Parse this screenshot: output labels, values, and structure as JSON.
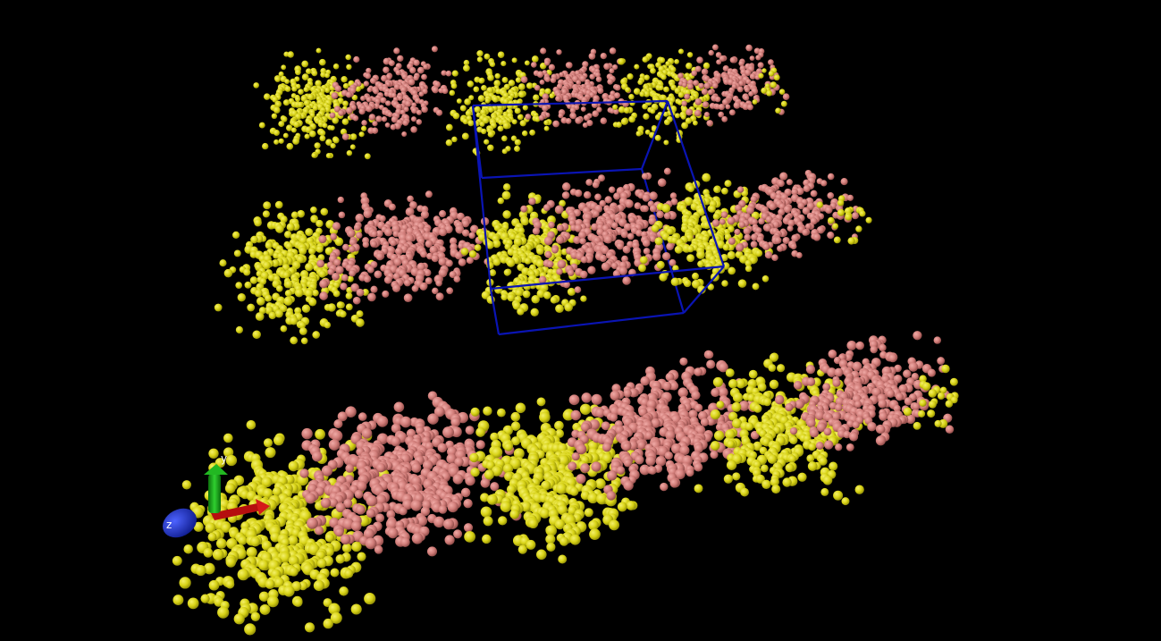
{
  "scene": {
    "background": "#000000",
    "colors": {
      "yellow_particles": "#d7d215",
      "pink_particles": "#d07c78",
      "simulation_box": "#0a14b4",
      "axis_x": "#cc1111",
      "axis_y": "#1eaa1e",
      "axis_z": "#1c2ec8"
    },
    "layers": [
      "top-row",
      "middle-row",
      "bottom-row"
    ],
    "clusters_per_layer": 3
  },
  "axes_triad": {
    "y_label": "y",
    "z_label": "z"
  }
}
